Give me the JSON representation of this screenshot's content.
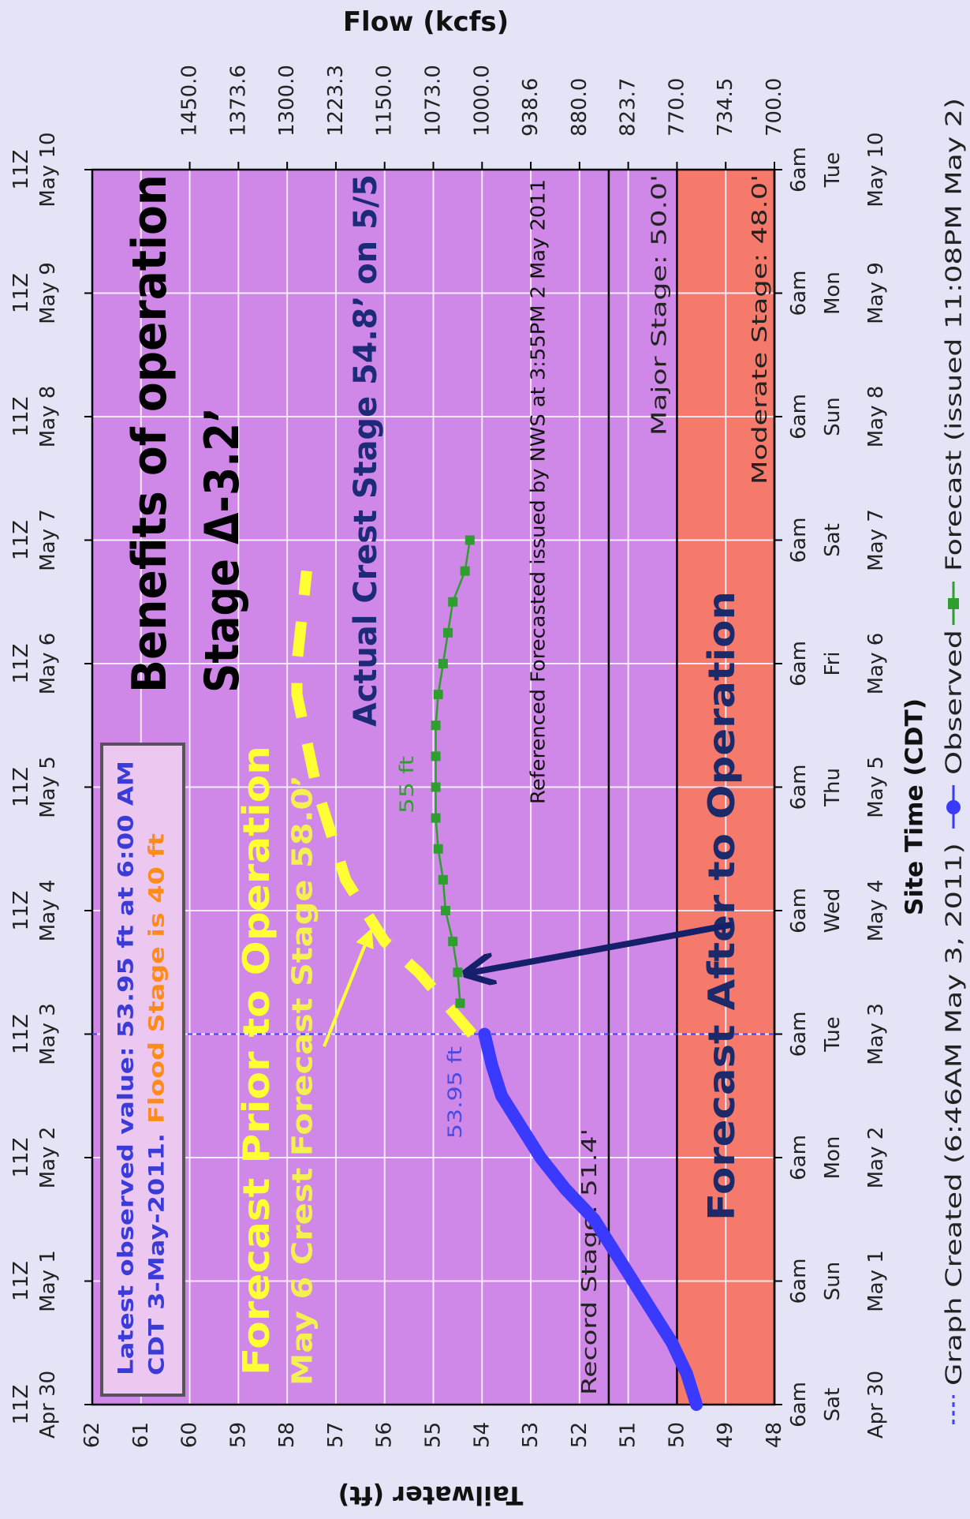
{
  "chart_data": {
    "type": "line",
    "x_label": "Site Time (CDT)",
    "y_label": "Tailwater (ft)",
    "y2_label": "Flow (kcfs)",
    "xlim": [
      "Apr 30 11Z",
      "May 10 11Z"
    ],
    "xticks": [
      "Apr 30",
      "May 1",
      "May 2",
      "May 3",
      "May 4",
      "May 5",
      "May 6",
      "May 7",
      "May 8",
      "May 9",
      "May 10"
    ],
    "xtick_time_utc": "11Z",
    "xtick_time_local": "6am",
    "weekdays": [
      "Sat",
      "Sun",
      "Mon",
      "Tue",
      "Wed",
      "Thu",
      "Fri",
      "Sat",
      "Sun",
      "Mon",
      "Tue"
    ],
    "ylim": [
      48,
      62
    ],
    "yticks": [
      62,
      61,
      60,
      59,
      58,
      57,
      56,
      55,
      54,
      53,
      52,
      51,
      50,
      49,
      48
    ],
    "y2ticks": [
      {
        "value": 1450,
        "label": "1450.0"
      },
      1373.6,
      {
        "value": 1300,
        "label": "1300.0"
      },
      1223.3,
      {
        "value": 1150,
        "label": "1150.0"
      },
      {
        "value": 1073,
        "label": "1073.0"
      },
      {
        "value": 1000,
        "label": "1000.0"
      },
      938.6,
      {
        "value": 880,
        "label": "880.0"
      },
      823.7,
      {
        "value": 770,
        "label": "770.0"
      },
      734.5,
      {
        "value": 700,
        "label": "700.0"
      }
    ],
    "grid": true,
    "zones": [
      {
        "from": 50,
        "to": 62,
        "color": "#d088e8"
      },
      {
        "from": 48,
        "to": 50,
        "color": "#f57a6c"
      }
    ],
    "thresholds": [
      {
        "name": "Record Stage: 51.4'",
        "value": 51.4
      },
      {
        "name": "Major Stage: 50.0'",
        "value": 50.0
      },
      {
        "name": "Moderate Stage: 48.0'",
        "value": 48.0
      }
    ],
    "series": [
      {
        "name": "Observed",
        "color": "#3a3aff",
        "x": [
          "Apr 30 11Z",
          "Apr 30 17Z",
          "Apr 30 23Z",
          "May 1 05Z",
          "May 1 11Z",
          "May 1 17Z",
          "May 1 23Z",
          "May 2 05Z",
          "May 2 11Z",
          "May 2 17Z",
          "May 2 23Z",
          "May 3 05Z",
          "May 3 11Z"
        ],
        "values": [
          49.6,
          49.8,
          50.1,
          50.5,
          50.9,
          51.3,
          51.7,
          52.3,
          52.8,
          53.2,
          53.6,
          53.8,
          53.95
        ]
      },
      {
        "name": "Forecast (issued 11:08PM May 2)",
        "color": "#2e9e2e",
        "x": [
          "May 3 17Z",
          "May 3 23Z",
          "May 4 05Z",
          "May 4 11Z",
          "May 4 17Z",
          "May 4 23Z",
          "May 5 05Z",
          "May 5 11Z",
          "May 5 17Z",
          "May 5 23Z",
          "May 6 05Z",
          "May 6 11Z",
          "May 6 17Z",
          "May 6 23Z",
          "May 7 05Z",
          "May 7 11Z"
        ],
        "values": [
          54.45,
          54.5,
          54.6,
          54.75,
          54.8,
          54.9,
          54.95,
          54.95,
          54.95,
          54.95,
          54.9,
          54.8,
          54.7,
          54.6,
          54.35,
          54.25
        ]
      }
    ],
    "prior_forecast": {
      "color": "#ffff33",
      "x": [
        "May 3 11Z",
        "May 3 23Z",
        "May 4 05Z",
        "May 4 17Z",
        "May 5 11Z",
        "May 6 05Z",
        "May 6 11Z",
        "May 7 05Z"
      ],
      "values": [
        54.2,
        55.3,
        56.0,
        56.8,
        57.4,
        57.8,
        57.8,
        57.6
      ]
    },
    "legend_note": "Graph Created (6:46AM May 3, 2011)",
    "latest_box": [
      "Latest observed value: 53.95 ft at 6:00 AM",
      "CDT 3-May-2011.",
      "Flood Stage is 40 ft"
    ],
    "annotations": [
      {
        "text": "Benefits of operation",
        "color": "#000000"
      },
      {
        "text": "Stage Δ-3.2’",
        "color": "#000000"
      },
      {
        "text": "Actual Crest Stage 54.8’ on 5/5",
        "color": "#1c2a78"
      },
      {
        "text": "Referenced Forecasted issued by NWS at 3:55PM 2 May 2011",
        "color": "#111111"
      },
      {
        "text": "Forecast Prior to Operation",
        "color": "#ffff33"
      },
      {
        "text": "May 6 Crest Forecast Stage 58.0’",
        "color": "#f4f050"
      },
      {
        "text": "Forecast After to Operation",
        "color": "#1c2a6a"
      },
      {
        "text": "55 ft",
        "color": "#2e9e2e"
      },
      {
        "text": "53.95 ft",
        "color": "#4a4ae0"
      }
    ]
  }
}
